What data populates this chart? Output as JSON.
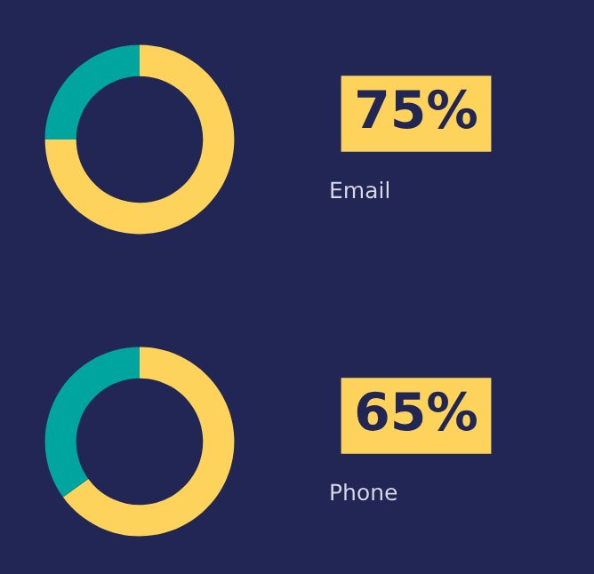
{
  "chart_data": [
    {
      "type": "donut",
      "title": "Email",
      "categories": [
        null,
        null
      ],
      "values": [
        75,
        25
      ],
      "colors": [
        "#fdd35c",
        "#00a5a0"
      ],
      "value_labels": [
        "75%",
        null
      ]
    },
    {
      "type": "donut",
      "title": "Phone",
      "categories": [
        null,
        null
      ],
      "values": [
        65,
        35
      ],
      "colors": [
        "#fdd35c",
        "#00a5a0"
      ],
      "value_labels": [
        "65%",
        null
      ]
    }
  ]
}
